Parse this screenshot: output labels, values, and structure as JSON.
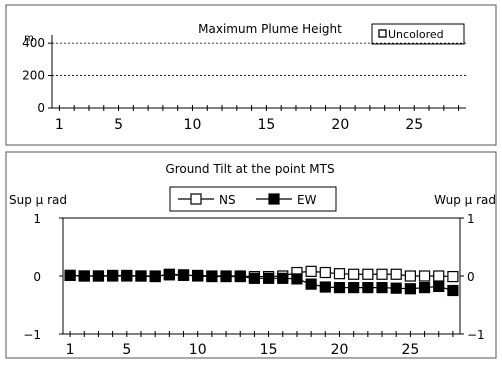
{
  "chart_data": [
    {
      "type": "line",
      "title": "Maximum Plume Height",
      "ylabel": "m",
      "legend": {
        "label": "Uncolored",
        "placement": "top-right"
      },
      "x_ticks": [
        "1",
        "5",
        "10",
        "15",
        "20",
        "25"
      ],
      "y_ticks": [
        "0",
        "200",
        "400"
      ],
      "ylim": [
        0,
        450
      ],
      "xlim": [
        0.5,
        28.5
      ],
      "gridlines": [
        200,
        400
      ],
      "series": []
    },
    {
      "type": "line",
      "title": "Ground Tilt at the point MTS",
      "ylabel_left": "Sup μ rad",
      "ylabel_right": "Wup μ rad",
      "legend_placement": "top-center",
      "x_ticks": [
        "1",
        "5",
        "10",
        "15",
        "20",
        "25"
      ],
      "y_ticks": [
        "1",
        "0",
        "−1"
      ],
      "ylim": [
        -1,
        1
      ],
      "xlim": [
        0.5,
        28.5
      ],
      "x": [
        1,
        2,
        3,
        4,
        5,
        6,
        7,
        8,
        9,
        10,
        11,
        12,
        13,
        14,
        15,
        16,
        17,
        18,
        19,
        20,
        21,
        22,
        23,
        24,
        25,
        26,
        27,
        28
      ],
      "series": [
        {
          "name": "NS",
          "marker": "open-square",
          "values": [
            0.01,
            0.0,
            0.0,
            0.01,
            0.01,
            0.0,
            0.0,
            0.02,
            0.01,
            0.01,
            0.0,
            0.0,
            0.0,
            -0.01,
            -0.01,
            0.0,
            0.06,
            0.08,
            0.06,
            0.04,
            0.03,
            0.03,
            0.03,
            0.03,
            0.0,
            0.0,
            0.0,
            -0.01
          ]
        },
        {
          "name": "EW",
          "marker": "filled-square",
          "values": [
            0.01,
            0.0,
            0.0,
            0.0,
            0.0,
            0.0,
            -0.01,
            0.03,
            0.02,
            0.0,
            -0.01,
            -0.01,
            -0.01,
            -0.04,
            -0.04,
            -0.04,
            -0.05,
            -0.14,
            -0.19,
            -0.2,
            -0.2,
            -0.2,
            -0.2,
            -0.21,
            -0.22,
            -0.2,
            -0.18,
            -0.25
          ]
        }
      ]
    }
  ]
}
